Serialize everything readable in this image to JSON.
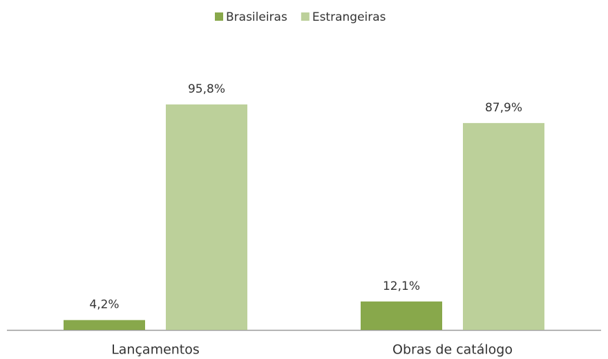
{
  "chart_data": {
    "type": "bar",
    "categories": [
      "Lançamentos",
      "Obras de catálogo"
    ],
    "series": [
      {
        "name": "Brasileiras",
        "color": "#88a84b",
        "values": [
          4.2,
          12.1
        ],
        "value_labels": [
          "4,2%",
          "12,1%"
        ]
      },
      {
        "name": "Estrangeiras",
        "color": "#bcd09a",
        "values": [
          95.8,
          87.9
        ],
        "value_labels": [
          "95,8%",
          "87,9%"
        ]
      }
    ],
    "legend": "top"
  }
}
